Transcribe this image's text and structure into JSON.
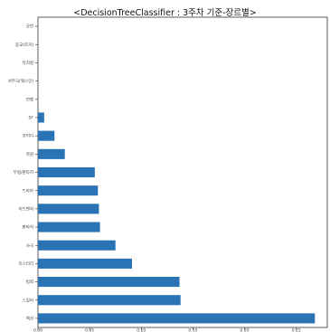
{
  "chart_data": {
    "type": "bar",
    "orientation": "horizontal",
    "title": "<DecisionTreeClassifier : 3주차 기준-장르별>",
    "xlabel": "",
    "ylabel": "",
    "categories": [
      "액션",
      "스릴러",
      "범죄",
      "미스터리",
      "사극",
      "판타지",
      "어드벤처",
      "드라마",
      "무협/판타지",
      "학원",
      "코미디",
      "SF",
      "전쟁",
      "서부극(웨스턴)",
      "뮤지컬",
      "종교(토커)",
      "공연"
    ],
    "values": [
      0.268,
      0.138,
      0.137,
      0.091,
      0.075,
      0.06,
      0.059,
      0.058,
      0.055,
      0.026,
      0.016,
      0.006,
      0,
      0,
      0,
      0,
      0
    ],
    "xlim": [
      0,
      0.28
    ],
    "xticks": [
      0.0,
      0.05,
      0.1,
      0.15,
      0.2,
      0.25
    ],
    "xtick_labels": [
      "0.00",
      "0.05",
      "0.10",
      "0.15",
      "0.20",
      "0.25"
    ],
    "bar_color": "#2a73b4",
    "grid": false,
    "legend": "none"
  }
}
